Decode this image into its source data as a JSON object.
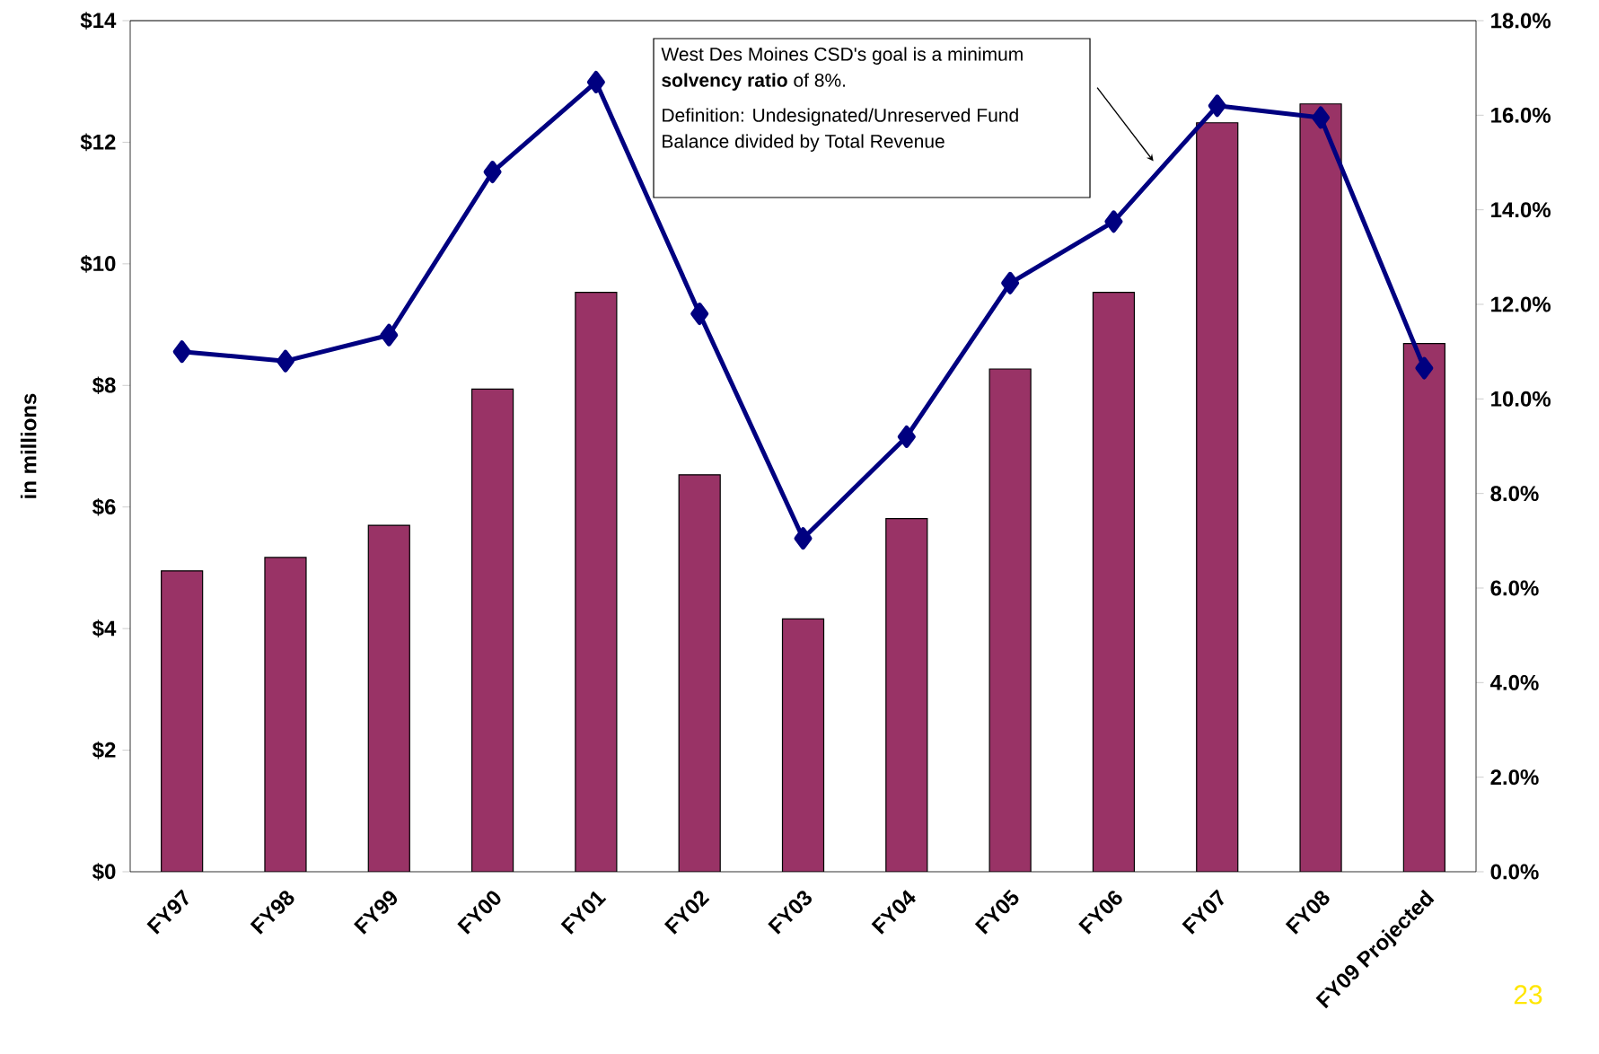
{
  "chart_data": {
    "type": "bar",
    "categories": [
      "FY97",
      "FY98",
      "FY99",
      "FY00",
      "FY01",
      "FY02",
      "FY03",
      "FY04",
      "FY05",
      "FY06",
      "FY07",
      "FY08",
      "FY09 Projected"
    ],
    "series": [
      {
        "color": "#993366",
        "values": [
          4.95,
          5.17,
          5.7,
          7.94,
          9.53,
          6.53,
          4.16,
          5.81,
          8.27,
          9.53,
          12.32,
          12.63,
          8.69
        ]
      },
      {
        "type": "line",
        "axis": "y2",
        "color": "#000080",
        "values": [
          11.0,
          10.8,
          11.35,
          14.8,
          16.7,
          11.8,
          7.05,
          9.2,
          12.45,
          13.75,
          16.2,
          15.95,
          10.65
        ]
      }
    ],
    "marker": "diamond",
    "ylabel": "in millions",
    "ylim": [
      0,
      14
    ],
    "yticks": [
      {
        "value": 0,
        "label": "$0"
      },
      {
        "value": 2,
        "label": "$2"
      },
      {
        "value": 4,
        "label": "$4"
      },
      {
        "value": 6,
        "label": "$6"
      },
      {
        "value": 8,
        "label": "$8"
      },
      {
        "value": 10,
        "label": "$10"
      },
      {
        "value": 12,
        "label": "$12"
      },
      {
        "value": 14,
        "label": "$14"
      }
    ],
    "y2lim": [
      0,
      18
    ],
    "y2ticks": [
      {
        "value": 0,
        "label": "0.0%"
      },
      {
        "value": 2,
        "label": "2.0%"
      },
      {
        "value": 4,
        "label": "4.0%"
      },
      {
        "value": 6,
        "label": "6.0%"
      },
      {
        "value": 8,
        "label": "8.0%"
      },
      {
        "value": 10,
        "label": "10.0%"
      },
      {
        "value": 12,
        "label": "12.0%"
      },
      {
        "value": 14,
        "label": "14.0%"
      },
      {
        "value": 16,
        "label": "16.0%"
      },
      {
        "value": 18,
        "label": "18.0%"
      }
    ],
    "annotations": [
      "West Des Moines CSD's goal is a minimum **solvency ratio** of 8%.",
      "Definition:  Undesignated/Unreserved Fund Balance divided by Total Revenue",
      "23"
    ]
  }
}
